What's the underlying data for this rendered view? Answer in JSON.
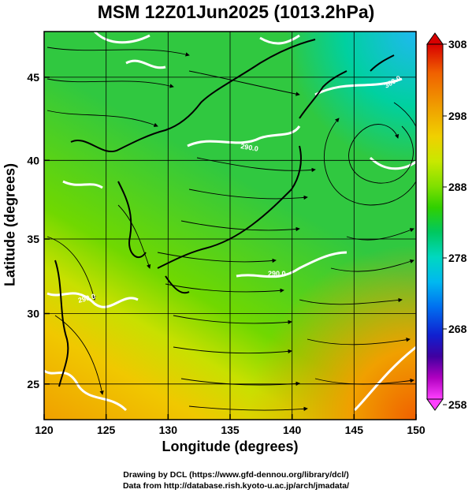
{
  "title": "MSM 12Z01Jun2025 (1013.2hPa)",
  "axes": {
    "x_label": "Longitude (degrees)",
    "y_label": "Latitude  (degrees)",
    "x_ticks": [
      "120",
      "125",
      "130",
      "135",
      "140",
      "145",
      "150"
    ],
    "y_ticks": [
      "25",
      "30",
      "35",
      "40",
      "45"
    ]
  },
  "colorbar": {
    "ticks": [
      "308",
      "298",
      "288",
      "278",
      "268",
      "258"
    ],
    "colors": [
      "#d80000",
      "#f06000",
      "#f0a000",
      "#f0d000",
      "#c8e800",
      "#80e000",
      "#30d000",
      "#00c860",
      "#00d8c0",
      "#00b8f0",
      "#0070f0",
      "#1020d0",
      "#4000a0",
      "#b000c0",
      "#ff40ff"
    ]
  },
  "contour_labels": [
    "300.0",
    "290.0",
    "290.0",
    "290.0"
  ],
  "credits": {
    "line1": "Drawing by DCL (https://www.gfd-dennou.org/library/dcl/)",
    "line2": "Data from http://database.rish.kyoto-u.ac.jp/arch/jmadata/"
  }
}
